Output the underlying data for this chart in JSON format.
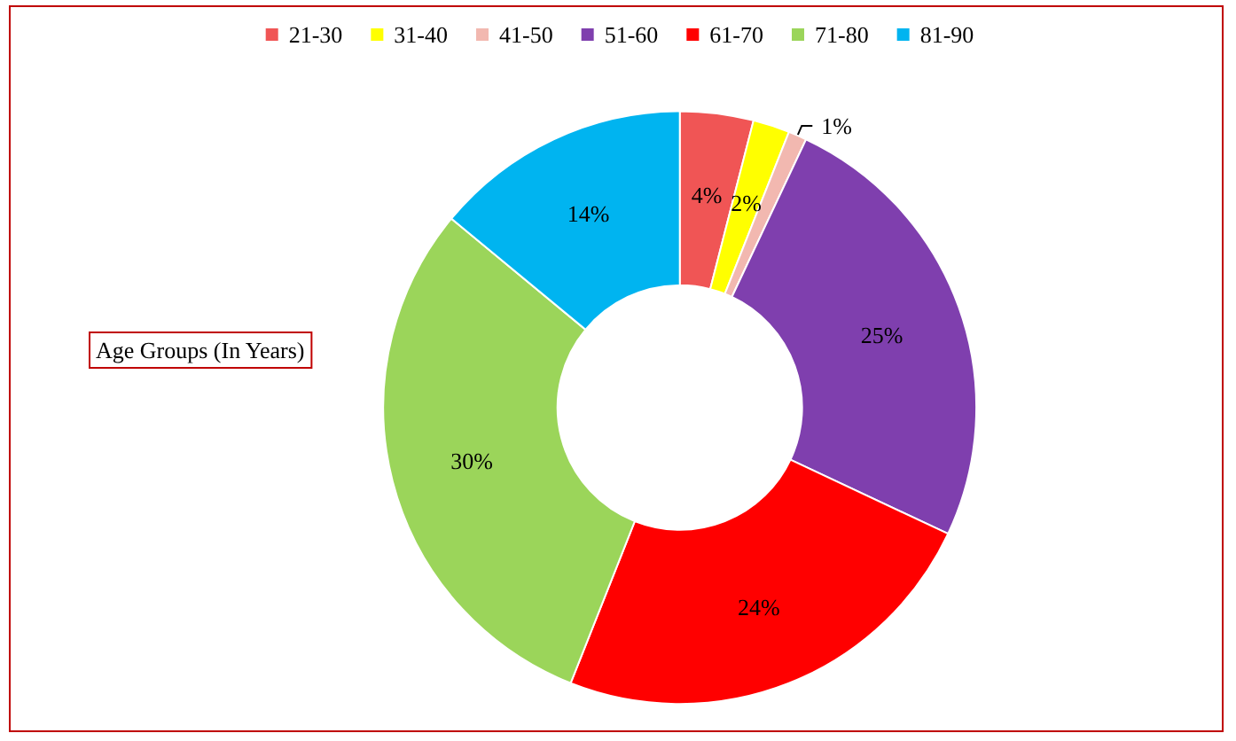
{
  "chart_data": {
    "type": "donut",
    "categories": [
      "21-30",
      "31-40",
      "41-50",
      "51-60",
      "61-70",
      "71-80",
      "81-90"
    ],
    "values": [
      4,
      2,
      1,
      25,
      24,
      30,
      14
    ],
    "colors": [
      "#f05555",
      "#ffff00",
      "#f2b8b0",
      "#7f3fae",
      "#ff0000",
      "#9bd55a",
      "#00b4f0"
    ],
    "value_labels": [
      "4%",
      "2%",
      "1%",
      "25%",
      "24%",
      "30%",
      "14%"
    ],
    "legend": "top",
    "annotations": [
      "Age Groups (In Years)"
    ]
  }
}
